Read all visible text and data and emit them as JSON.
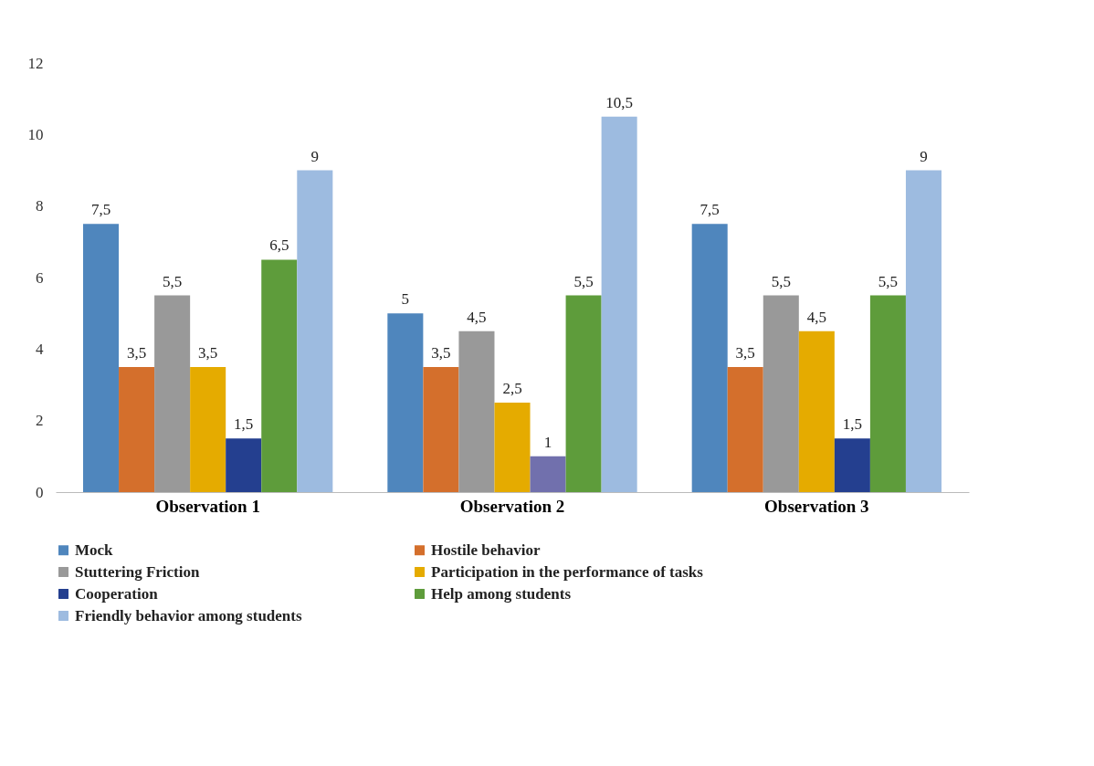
{
  "chart_data": {
    "type": "bar",
    "categories": [
      "Observation 1",
      "Observation 2",
      "Observation 3"
    ],
    "series": [
      {
        "name": "Mock",
        "color": "#4f86bd",
        "values": [
          7.5,
          5,
          7.5
        ],
        "value_labels": [
          "7,5",
          "5",
          "7,5"
        ]
      },
      {
        "name": "Hostile behavior",
        "color": "#d46f2c",
        "values": [
          3.5,
          3.5,
          3.5
        ],
        "value_labels": [
          "3,5",
          "3,5",
          "3,5"
        ]
      },
      {
        "name": "Stuttering Friction",
        "color": "#999999",
        "values": [
          5.5,
          4.5,
          5.5
        ],
        "value_labels": [
          "5,5",
          "4,5",
          "5,5"
        ]
      },
      {
        "name": "Participation in the performance of tasks",
        "color": "#e5ab00",
        "values": [
          3.5,
          2.5,
          4.5
        ],
        "value_labels": [
          "3,5",
          "2,5",
          "4,5"
        ]
      },
      {
        "name": "Cooperation",
        "color": "#243f8f",
        "colors": [
          "#243f8f",
          "#7170ad",
          "#243f8f"
        ],
        "values": [
          1.5,
          1,
          1.5
        ],
        "value_labels": [
          "1,5",
          "1",
          "1,5"
        ]
      },
      {
        "name": "Help among students",
        "color": "#5e9c3b",
        "values": [
          6.5,
          5.5,
          5.5
        ],
        "value_labels": [
          "6,5",
          "5,5",
          "5,5"
        ]
      },
      {
        "name": "Friendly behavior among students",
        "color": "#9dbbe0",
        "values": [
          9,
          10.5,
          9
        ],
        "value_labels": [
          "9",
          "10,5",
          "9"
        ]
      }
    ],
    "ylim": [
      0,
      12
    ],
    "yticks": [
      0,
      2,
      4,
      6,
      8,
      10,
      12
    ],
    "grid": false,
    "legend": "bottom"
  }
}
